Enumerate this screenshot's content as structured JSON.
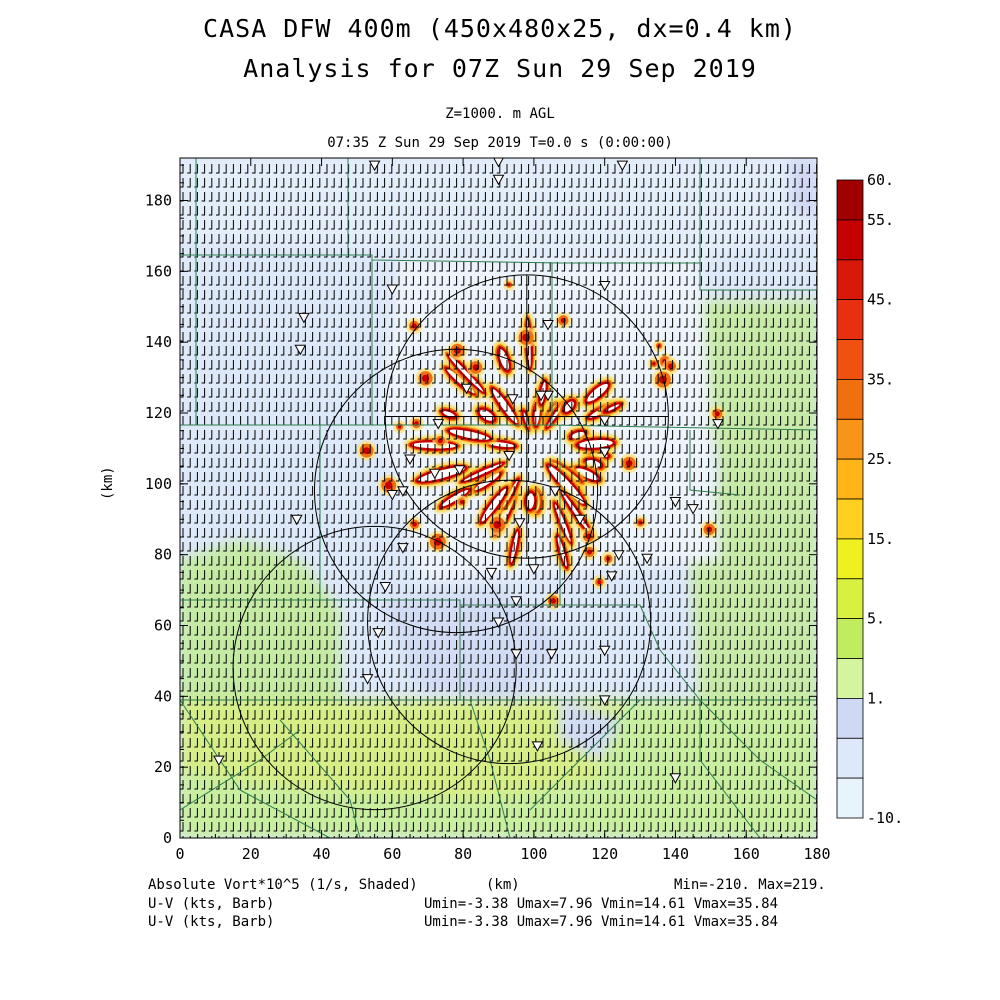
{
  "chart_data": {
    "type": "heatmap",
    "title": "CASA DFW 400m (450x480x25, dx=0.4 km)",
    "subtitle": "Analysis for 07Z Sun 29 Sep 2019",
    "level_label": "Z=1000. m AGL",
    "time_label": "07:35 Z Sun 29 Sep 2019    T=0.0 s (0:00:00)",
    "xlabel": "(km)",
    "ylabel": "(km)",
    "xlim": [
      0,
      180
    ],
    "ylim": [
      0,
      192
    ],
    "x_ticks": [
      0,
      20,
      40,
      60,
      80,
      100,
      120,
      140,
      160,
      180
    ],
    "y_ticks": [
      0,
      20,
      40,
      60,
      80,
      100,
      120,
      140,
      160,
      180
    ],
    "colorbar": {
      "labels": [
        "60.",
        "55.",
        "45.",
        "35.",
        "25.",
        "15.",
        "5.",
        "1.",
        "-10."
      ],
      "colors": [
        "#a00000",
        "#c40000",
        "#d81808",
        "#e83010",
        "#f05010",
        "#f07010",
        "#f89418",
        "#ffb418",
        "#ffd020",
        "#eef020",
        "#d8f040",
        "#c0ec60",
        "#d4f4a0",
        "#cfd8f4",
        "#dde8fa",
        "#e8f4fc"
      ]
    },
    "field_labels": [
      "Absolute Vort*10^5 (1/s, Shaded)",
      "U-V (kts, Barb)",
      "U-V (kts, Barb)"
    ],
    "min_max": "Min=-210. Max=219.",
    "uv_stats": [
      "Umin=-3.38 Umax=7.96 Vmin=14.61 Vmax=35.84",
      "Umin=-3.38 Umax=7.96 Vmin=14.61 Vmax=35.84"
    ],
    "radar_rings": [
      {
        "cx": 98,
        "cy": 119,
        "r": 40
      },
      {
        "cx": 78,
        "cy": 98,
        "r": 40
      },
      {
        "cx": 93,
        "cy": 61,
        "r": 40
      },
      {
        "cx": 55,
        "cy": 48,
        "r": 40
      }
    ],
    "vortex_bands_note": "radial high-vorticity bands centered near (100,110)"
  }
}
